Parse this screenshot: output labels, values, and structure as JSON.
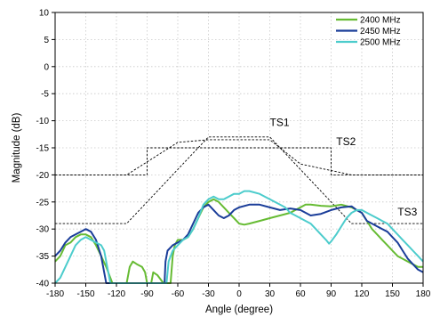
{
  "chart_data": {
    "type": "line",
    "xlabel": "Angle (degree)",
    "ylabel": "Magnitude (dB)",
    "xlim": [
      -180,
      180
    ],
    "ylim": [
      -40,
      10
    ],
    "xticks": [
      -180,
      -150,
      -120,
      -90,
      -60,
      -30,
      0,
      30,
      60,
      90,
      120,
      150,
      180
    ],
    "yticks": [
      -40,
      -35,
      -30,
      -25,
      -20,
      -15,
      -10,
      -5,
      0,
      5,
      10
    ],
    "grid": true,
    "grid_style": "dotted",
    "legend_position": "top-right",
    "series": [
      {
        "name": "2400 MHz",
        "color": "#66bb33",
        "points": [
          [
            -180,
            -36
          ],
          [
            -175,
            -35
          ],
          [
            -170,
            -33
          ],
          [
            -165,
            -32.5
          ],
          [
            -160,
            -31.5
          ],
          [
            -155,
            -31
          ],
          [
            -150,
            -31
          ],
          [
            -145,
            -31.5
          ],
          [
            -140,
            -33
          ],
          [
            -135,
            -35
          ],
          [
            -130,
            -37
          ],
          [
            -126,
            -39
          ],
          [
            -124,
            -40
          ],
          [
            -110,
            -40
          ],
          [
            -107,
            -37
          ],
          [
            -104,
            -36
          ],
          [
            -100,
            -36.5
          ],
          [
            -95,
            -37
          ],
          [
            -92,
            -38
          ],
          [
            -90,
            -40
          ],
          [
            -86,
            -40
          ],
          [
            -84,
            -38
          ],
          [
            -80,
            -38.5
          ],
          [
            -76,
            -39.5
          ],
          [
            -74,
            -40
          ],
          [
            -67,
            -40
          ],
          [
            -65,
            -35
          ],
          [
            -63,
            -33
          ],
          [
            -60,
            -32
          ],
          [
            -55,
            -32
          ],
          [
            -50,
            -31.5
          ],
          [
            -45,
            -30
          ],
          [
            -40,
            -28
          ],
          [
            -35,
            -26
          ],
          [
            -30,
            -25
          ],
          [
            -25,
            -24.5
          ],
          [
            -20,
            -25
          ],
          [
            -15,
            -26
          ],
          [
            -10,
            -27
          ],
          [
            -5,
            -28
          ],
          [
            0,
            -29
          ],
          [
            5,
            -29.2
          ],
          [
            10,
            -29
          ],
          [
            20,
            -28.5
          ],
          [
            30,
            -28
          ],
          [
            40,
            -27.5
          ],
          [
            50,
            -27
          ],
          [
            55,
            -26.5
          ],
          [
            60,
            -26
          ],
          [
            65,
            -25.5
          ],
          [
            70,
            -25.5
          ],
          [
            80,
            -25.7
          ],
          [
            90,
            -25.8
          ],
          [
            100,
            -25.5
          ],
          [
            110,
            -26
          ],
          [
            115,
            -26.5
          ],
          [
            120,
            -27
          ],
          [
            125,
            -28.5
          ],
          [
            130,
            -30
          ],
          [
            135,
            -31
          ],
          [
            140,
            -32
          ],
          [
            145,
            -33
          ],
          [
            150,
            -34
          ],
          [
            155,
            -35
          ],
          [
            160,
            -35.5
          ],
          [
            165,
            -36
          ],
          [
            170,
            -36.5
          ],
          [
            175,
            -37
          ],
          [
            180,
            -37
          ]
        ]
      },
      {
        "name": "2450 MHz",
        "color": "#1a3d99",
        "points": [
          [
            -180,
            -35
          ],
          [
            -175,
            -34
          ],
          [
            -170,
            -32.5
          ],
          [
            -165,
            -31.5
          ],
          [
            -160,
            -31
          ],
          [
            -155,
            -30.5
          ],
          [
            -150,
            -30
          ],
          [
            -145,
            -30.5
          ],
          [
            -140,
            -32
          ],
          [
            -135,
            -35
          ],
          [
            -132,
            -38
          ],
          [
            -130,
            -40
          ],
          [
            -73,
            -40
          ],
          [
            -72,
            -36
          ],
          [
            -70,
            -34
          ],
          [
            -65,
            -33
          ],
          [
            -60,
            -32.5
          ],
          [
            -55,
            -32
          ],
          [
            -50,
            -31
          ],
          [
            -45,
            -29
          ],
          [
            -40,
            -27
          ],
          [
            -35,
            -26
          ],
          [
            -30,
            -25.5
          ],
          [
            -25,
            -26.5
          ],
          [
            -20,
            -27.5
          ],
          [
            -15,
            -28
          ],
          [
            -10,
            -27.5
          ],
          [
            -5,
            -26.5
          ],
          [
            0,
            -26
          ],
          [
            10,
            -25.5
          ],
          [
            20,
            -25.5
          ],
          [
            30,
            -26
          ],
          [
            40,
            -26.5
          ],
          [
            50,
            -26.2
          ],
          [
            60,
            -26.5
          ],
          [
            70,
            -27.5
          ],
          [
            80,
            -27.2
          ],
          [
            90,
            -26.5
          ],
          [
            100,
            -26
          ],
          [
            110,
            -25.8
          ],
          [
            115,
            -26.5
          ],
          [
            120,
            -27
          ],
          [
            125,
            -28.5
          ],
          [
            130,
            -29
          ],
          [
            135,
            -29.5
          ],
          [
            140,
            -30
          ],
          [
            145,
            -30.5
          ],
          [
            150,
            -31.5
          ],
          [
            155,
            -32.5
          ],
          [
            160,
            -34
          ],
          [
            165,
            -35.5
          ],
          [
            170,
            -36.5
          ],
          [
            175,
            -37.5
          ],
          [
            180,
            -38
          ]
        ]
      },
      {
        "name": "2500 MHz",
        "color": "#4ccccc",
        "points": [
          [
            -180,
            -40
          ],
          [
            -175,
            -39
          ],
          [
            -170,
            -37
          ],
          [
            -165,
            -35
          ],
          [
            -160,
            -33
          ],
          [
            -155,
            -32
          ],
          [
            -150,
            -31.5
          ],
          [
            -145,
            -32
          ],
          [
            -140,
            -32.5
          ],
          [
            -135,
            -33
          ],
          [
            -132,
            -34
          ],
          [
            -130,
            -36
          ],
          [
            -127,
            -39
          ],
          [
            -126,
            -40
          ],
          [
            -71,
            -40
          ],
          [
            -69,
            -36
          ],
          [
            -65,
            -34
          ],
          [
            -60,
            -33
          ],
          [
            -55,
            -32
          ],
          [
            -50,
            -31.5
          ],
          [
            -45,
            -30
          ],
          [
            -40,
            -28
          ],
          [
            -35,
            -25.5
          ],
          [
            -30,
            -24.5
          ],
          [
            -25,
            -24
          ],
          [
            -20,
            -24.5
          ],
          [
            -15,
            -24.5
          ],
          [
            -10,
            -24
          ],
          [
            -5,
            -23.5
          ],
          [
            0,
            -23.5
          ],
          [
            5,
            -23
          ],
          [
            10,
            -23
          ],
          [
            20,
            -23.5
          ],
          [
            30,
            -24.5
          ],
          [
            40,
            -25.5
          ],
          [
            45,
            -26
          ],
          [
            50,
            -27
          ],
          [
            55,
            -27.5
          ],
          [
            60,
            -28
          ],
          [
            65,
            -28.5
          ],
          [
            70,
            -29
          ],
          [
            75,
            -30
          ],
          [
            80,
            -31
          ],
          [
            85,
            -32
          ],
          [
            88,
            -32.7
          ],
          [
            90,
            -32.3
          ],
          [
            95,
            -31
          ],
          [
            100,
            -29.5
          ],
          [
            105,
            -28
          ],
          [
            110,
            -27
          ],
          [
            115,
            -26.5
          ],
          [
            120,
            -26.5
          ],
          [
            125,
            -27
          ],
          [
            130,
            -27.5
          ],
          [
            135,
            -28
          ],
          [
            140,
            -28.5
          ],
          [
            145,
            -29
          ],
          [
            150,
            -30
          ],
          [
            155,
            -31
          ],
          [
            160,
            -32
          ],
          [
            165,
            -33
          ],
          [
            170,
            -34
          ],
          [
            175,
            -35
          ],
          [
            180,
            -36
          ]
        ]
      }
    ],
    "templates": [
      {
        "name": "TS1",
        "style": "dashed",
        "points": [
          [
            -180,
            -29
          ],
          [
            -110,
            -29
          ],
          [
            -30,
            -13
          ],
          [
            30,
            -13
          ],
          [
            110,
            -29
          ],
          [
            180,
            -29
          ]
        ]
      },
      {
        "name": "TS2",
        "style": "dashed",
        "points": [
          [
            -180,
            -20
          ],
          [
            -90,
            -20
          ],
          [
            -90,
            -15
          ],
          [
            90,
            -15
          ],
          [
            90,
            -20
          ],
          [
            180,
            -20
          ]
        ]
      },
      {
        "name": "TS3",
        "style": "dashed",
        "points": [
          [
            -180,
            -20
          ],
          [
            -110,
            -20
          ],
          [
            -60,
            -14
          ],
          [
            -30,
            -13.5
          ],
          [
            30,
            -13.5
          ],
          [
            60,
            -18
          ],
          [
            110,
            -20
          ],
          [
            180,
            -20
          ]
        ]
      }
    ],
    "annotations": [
      {
        "text": "TS1",
        "x": 30,
        "y": -11
      },
      {
        "text": "TS2",
        "x": 95,
        "y": -14.5
      },
      {
        "text": "TS3",
        "x": 155,
        "y": -27.5
      }
    ]
  }
}
